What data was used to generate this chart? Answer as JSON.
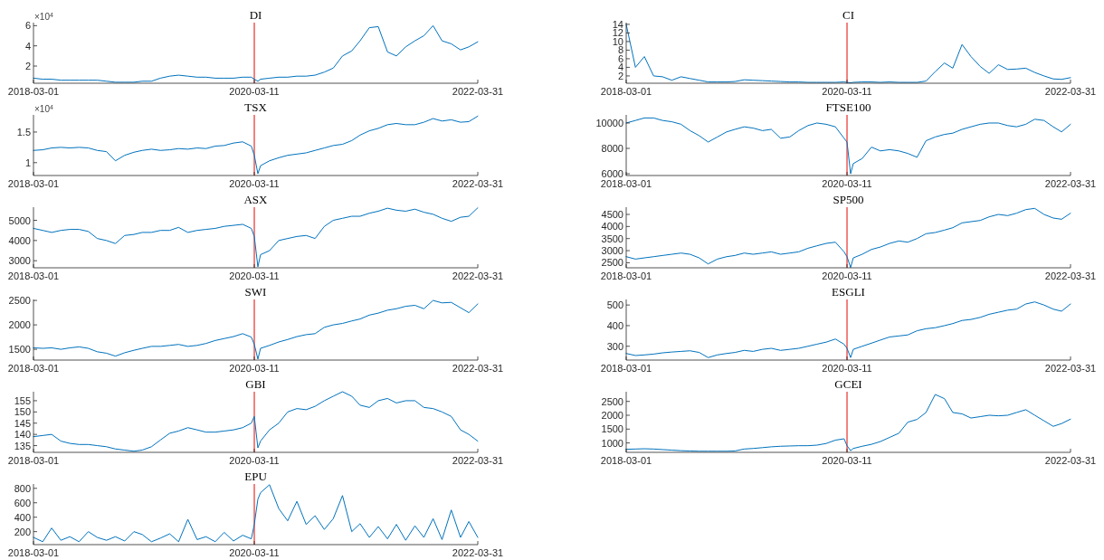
{
  "chart_data": [
    {
      "type": "line",
      "title": "DI",
      "annotations": [
        "×10$^{4}$"
      ],
      "x": [
        "2018-03-01",
        "2018-04-01",
        "2018-05-01",
        "2018-06-01",
        "2018-07-01",
        "2018-08-01",
        "2018-09-01",
        "2018-10-01",
        "2018-11-01",
        "2018-12-01",
        "2019-01-01",
        "2019-02-01",
        "2019-03-01",
        "2019-04-01",
        "2019-05-01",
        "2019-06-01",
        "2019-07-01",
        "2019-08-01",
        "2019-09-01",
        "2019-10-01",
        "2019-11-01",
        "2019-12-01",
        "2020-01-01",
        "2020-02-01",
        "2020-03-01",
        "2020-03-11",
        "2020-03-23",
        "2020-04-01",
        "2020-05-01",
        "2020-06-01",
        "2020-07-01",
        "2020-08-01",
        "2020-09-01",
        "2020-10-01",
        "2020-11-01",
        "2020-12-01",
        "2021-01-01",
        "2021-02-01",
        "2021-03-01",
        "2021-04-01",
        "2021-05-01",
        "2021-06-01",
        "2021-07-01",
        "2021-08-01",
        "2021-09-01",
        "2021-10-01",
        "2021-11-01",
        "2021-12-01",
        "2022-01-01",
        "2022-02-01",
        "2022-03-01",
        "2022-03-31"
      ],
      "series": [
        {
          "color": "#0072bd",
          "values": [
            0.8,
            0.7,
            0.7,
            0.6,
            0.6,
            0.6,
            0.6,
            0.6,
            0.5,
            0.4,
            0.4,
            0.4,
            0.5,
            0.5,
            0.8,
            1.0,
            1.1,
            1.0,
            0.9,
            0.9,
            0.8,
            0.8,
            0.8,
            0.9,
            0.9,
            0.7,
            0.5,
            0.7,
            0.8,
            0.9,
            0.9,
            1.0,
            1.0,
            1.1,
            1.4,
            1.8,
            3.0,
            3.5,
            4.5,
            5.8,
            5.9,
            3.4,
            3.0,
            3.9,
            4.5,
            5.0,
            6.0,
            4.5,
            4.2,
            3.6,
            3.9,
            4.4
          ]
        }
      ],
      "xlim": [
        "2018-03-01",
        "2022-03-31"
      ],
      "xticks": [
        "2018-03-01",
        "2020-03-11",
        "2022-03-31"
      ],
      "ylim": [
        0.3,
        6.3
      ],
      "yticks": [
        2,
        4,
        6
      ],
      "ref_lines": [
        {
          "axis": "x",
          "value": "2020-03-11",
          "color": "#e8302a"
        }
      ]
    },
    {
      "type": "line",
      "title": "CI",
      "x": [
        "2018-03-01",
        "2018-04-01",
        "2018-05-01",
        "2018-06-01",
        "2018-07-01",
        "2018-08-01",
        "2018-09-01",
        "2018-10-01",
        "2018-11-01",
        "2018-12-01",
        "2019-01-01",
        "2019-02-01",
        "2019-03-01",
        "2019-04-01",
        "2019-05-01",
        "2019-06-01",
        "2019-07-01",
        "2019-08-01",
        "2019-09-01",
        "2019-10-01",
        "2019-11-01",
        "2019-12-01",
        "2020-01-01",
        "2020-02-01",
        "2020-03-01",
        "2020-03-11",
        "2020-03-23",
        "2020-04-01",
        "2020-05-01",
        "2020-06-01",
        "2020-07-01",
        "2020-08-01",
        "2020-09-01",
        "2020-10-01",
        "2020-11-01",
        "2020-12-01",
        "2021-01-01",
        "2021-02-01",
        "2021-03-01",
        "2021-04-01",
        "2021-05-01",
        "2021-06-01",
        "2021-07-01",
        "2021-08-01",
        "2021-09-01",
        "2021-10-01",
        "2021-11-01",
        "2021-12-01",
        "2022-01-01",
        "2022-02-01",
        "2022-03-01",
        "2022-03-31"
      ],
      "series": [
        {
          "color": "#0072bd",
          "values": [
            14,
            4,
            6.5,
            2,
            1.8,
            1,
            1.8,
            1.4,
            1.0,
            0.6,
            0.6,
            0.6,
            0.7,
            1.1,
            1.0,
            0.9,
            0.8,
            0.7,
            0.6,
            0.6,
            0.5,
            0.5,
            0.5,
            0.5,
            0.6,
            0.5,
            0.4,
            0.5,
            0.6,
            0.6,
            0.5,
            0.6,
            0.5,
            0.5,
            0.5,
            0.8,
            3.0,
            5.0,
            3.8,
            9.3,
            6.5,
            4.2,
            2.6,
            4.6,
            3.5,
            3.6,
            3.8,
            2.8,
            2.0,
            1.3,
            1.2,
            1.6
          ]
        }
      ],
      "xlim": [
        "2018-03-01",
        "2022-03-31"
      ],
      "xticks": [
        "2018-03-01",
        "2020-03-11",
        "2022-03-31"
      ],
      "ylim": [
        0.3,
        14.4
      ],
      "yticks": [
        2,
        4,
        6,
        8,
        10,
        12,
        14
      ],
      "ref_lines": [
        {
          "axis": "x",
          "value": "2020-03-11",
          "color": "#e8302a"
        }
      ]
    },
    {
      "type": "line",
      "title": "TSX",
      "annotations": [
        "×10$^{4}$"
      ],
      "x": [
        "2018-03-01",
        "2018-04-01",
        "2018-05-01",
        "2018-06-01",
        "2018-07-01",
        "2018-08-01",
        "2018-09-01",
        "2018-10-01",
        "2018-11-01",
        "2018-12-01",
        "2019-01-01",
        "2019-02-01",
        "2019-03-01",
        "2019-04-01",
        "2019-05-01",
        "2019-06-01",
        "2019-07-01",
        "2019-08-01",
        "2019-09-01",
        "2019-10-01",
        "2019-11-01",
        "2019-12-01",
        "2020-01-01",
        "2020-02-01",
        "2020-03-01",
        "2020-03-11",
        "2020-03-23",
        "2020-04-01",
        "2020-05-01",
        "2020-06-01",
        "2020-07-01",
        "2020-08-01",
        "2020-09-01",
        "2020-10-01",
        "2020-11-01",
        "2020-12-01",
        "2021-01-01",
        "2021-02-01",
        "2021-03-01",
        "2021-04-01",
        "2021-05-01",
        "2021-06-01",
        "2021-07-01",
        "2021-08-01",
        "2021-09-01",
        "2021-10-01",
        "2021-11-01",
        "2021-12-01",
        "2022-01-01",
        "2022-02-01",
        "2022-03-01",
        "2022-03-31"
      ],
      "series": [
        {
          "color": "#0072bd",
          "values": [
            1.2,
            1.21,
            1.24,
            1.25,
            1.24,
            1.25,
            1.24,
            1.2,
            1.18,
            1.03,
            1.12,
            1.17,
            1.2,
            1.22,
            1.2,
            1.21,
            1.23,
            1.22,
            1.24,
            1.23,
            1.27,
            1.28,
            1.32,
            1.34,
            1.27,
            1.12,
            0.82,
            0.95,
            1.03,
            1.08,
            1.12,
            1.14,
            1.16,
            1.2,
            1.24,
            1.28,
            1.3,
            1.36,
            1.45,
            1.52,
            1.56,
            1.62,
            1.64,
            1.62,
            1.62,
            1.66,
            1.72,
            1.68,
            1.7,
            1.66,
            1.67,
            1.76
          ]
        }
      ],
      "xlim": [
        "2018-03-01",
        "2022-03-31"
      ],
      "xticks": [
        "2018-03-01",
        "2020-03-11",
        "2022-03-31"
      ],
      "ylim": [
        0.79,
        1.78
      ],
      "yticks": [
        1,
        1.5
      ],
      "ref_lines": [
        {
          "axis": "x",
          "value": "2020-03-11",
          "color": "#e8302a"
        }
      ]
    },
    {
      "type": "line",
      "title": "FTSE100",
      "x": [
        "2018-03-01",
        "2018-04-01",
        "2018-05-01",
        "2018-06-01",
        "2018-07-01",
        "2018-08-01",
        "2018-09-01",
        "2018-10-01",
        "2018-11-01",
        "2018-12-01",
        "2019-01-01",
        "2019-02-01",
        "2019-03-01",
        "2019-04-01",
        "2019-05-01",
        "2019-06-01",
        "2019-07-01",
        "2019-08-01",
        "2019-09-01",
        "2019-10-01",
        "2019-11-01",
        "2019-12-01",
        "2020-01-01",
        "2020-02-01",
        "2020-03-01",
        "2020-03-11",
        "2020-03-23",
        "2020-04-01",
        "2020-05-01",
        "2020-06-01",
        "2020-07-01",
        "2020-08-01",
        "2020-09-01",
        "2020-10-01",
        "2020-11-01",
        "2020-12-01",
        "2021-01-01",
        "2021-02-01",
        "2021-03-01",
        "2021-04-01",
        "2021-05-01",
        "2021-06-01",
        "2021-07-01",
        "2021-08-01",
        "2021-09-01",
        "2021-10-01",
        "2021-11-01",
        "2021-12-01",
        "2022-01-01",
        "2022-02-01",
        "2022-03-01",
        "2022-03-31"
      ],
      "series": [
        {
          "color": "#0072bd",
          "values": [
            10000,
            10200,
            10400,
            10400,
            10200,
            10100,
            9900,
            9400,
            9000,
            8500,
            8900,
            9300,
            9500,
            9700,
            9600,
            9400,
            9500,
            8800,
            8900,
            9400,
            9800,
            10000,
            9900,
            9700,
            8800,
            8500,
            6000,
            6800,
            7200,
            8100,
            7800,
            7900,
            7800,
            7600,
            7300,
            8600,
            8900,
            9100,
            9200,
            9500,
            9700,
            9900,
            10000,
            10000,
            9800,
            9700,
            9900,
            10300,
            10200,
            9700,
            9300,
            9900
          ]
        }
      ],
      "xlim": [
        "2018-03-01",
        "2022-03-31"
      ],
      "xticks": [
        "2018-03-01",
        "2020-03-11",
        "2022-03-31"
      ],
      "ylim": [
        5860,
        10640
      ],
      "yticks": [
        6000,
        8000,
        10000
      ],
      "ref_lines": [
        {
          "axis": "x",
          "value": "2020-03-11",
          "color": "#e8302a"
        }
      ]
    },
    {
      "type": "line",
      "title": "ASX",
      "x": [
        "2018-03-01",
        "2018-04-01",
        "2018-05-01",
        "2018-06-01",
        "2018-07-01",
        "2018-08-01",
        "2018-09-01",
        "2018-10-01",
        "2018-11-01",
        "2018-12-01",
        "2019-01-01",
        "2019-02-01",
        "2019-03-01",
        "2019-04-01",
        "2019-05-01",
        "2019-06-01",
        "2019-07-01",
        "2019-08-01",
        "2019-09-01",
        "2019-10-01",
        "2019-11-01",
        "2019-12-01",
        "2020-01-01",
        "2020-02-01",
        "2020-03-01",
        "2020-03-11",
        "2020-03-23",
        "2020-04-01",
        "2020-05-01",
        "2020-06-01",
        "2020-07-01",
        "2020-08-01",
        "2020-09-01",
        "2020-10-01",
        "2020-11-01",
        "2020-12-01",
        "2021-01-01",
        "2021-02-01",
        "2021-03-01",
        "2021-04-01",
        "2021-05-01",
        "2021-06-01",
        "2021-07-01",
        "2021-08-01",
        "2021-09-01",
        "2021-10-01",
        "2021-11-01",
        "2021-12-01",
        "2022-01-01",
        "2022-02-01",
        "2022-03-01",
        "2022-03-31"
      ],
      "series": [
        {
          "color": "#0072bd",
          "values": [
            4600,
            4500,
            4400,
            4500,
            4550,
            4550,
            4450,
            4100,
            4000,
            3850,
            4250,
            4300,
            4400,
            4400,
            4500,
            4500,
            4650,
            4400,
            4500,
            4550,
            4600,
            4700,
            4750,
            4800,
            4600,
            4200,
            2700,
            3300,
            3500,
            4000,
            4100,
            4200,
            4250,
            4100,
            4700,
            5000,
            5100,
            5200,
            5200,
            5350,
            5450,
            5600,
            5500,
            5450,
            5550,
            5400,
            5300,
            5100,
            4950,
            5150,
            5200,
            5620
          ]
        }
      ],
      "xlim": [
        "2018-03-01",
        "2022-03-31"
      ],
      "xticks": [
        "2018-03-01",
        "2020-03-11",
        "2022-03-31"
      ],
      "ylim": [
        2650,
        5650
      ],
      "yticks": [
        3000,
        4000,
        5000
      ],
      "ref_lines": [
        {
          "axis": "x",
          "value": "2020-03-11",
          "color": "#e8302a"
        }
      ]
    },
    {
      "type": "line",
      "title": "SP500",
      "x": [
        "2018-03-01",
        "2018-04-01",
        "2018-05-01",
        "2018-06-01",
        "2018-07-01",
        "2018-08-01",
        "2018-09-01",
        "2018-10-01",
        "2018-11-01",
        "2018-12-01",
        "2019-01-01",
        "2019-02-01",
        "2019-03-01",
        "2019-04-01",
        "2019-05-01",
        "2019-06-01",
        "2019-07-01",
        "2019-08-01",
        "2019-09-01",
        "2019-10-01",
        "2019-11-01",
        "2019-12-01",
        "2020-01-01",
        "2020-02-01",
        "2020-03-01",
        "2020-03-11",
        "2020-03-23",
        "2020-04-01",
        "2020-05-01",
        "2020-06-01",
        "2020-07-01",
        "2020-08-01",
        "2020-09-01",
        "2020-10-01",
        "2020-11-01",
        "2020-12-01",
        "2021-01-01",
        "2021-02-01",
        "2021-03-01",
        "2021-04-01",
        "2021-05-01",
        "2021-06-01",
        "2021-07-01",
        "2021-08-01",
        "2021-09-01",
        "2021-10-01",
        "2021-11-01",
        "2021-12-01",
        "2022-01-01",
        "2022-02-01",
        "2022-03-01",
        "2022-03-31"
      ],
      "series": [
        {
          "color": "#0072bd",
          "values": [
            2750,
            2650,
            2700,
            2750,
            2800,
            2850,
            2900,
            2850,
            2700,
            2450,
            2650,
            2750,
            2800,
            2900,
            2850,
            2900,
            2950,
            2850,
            2900,
            2950,
            3100,
            3200,
            3300,
            3350,
            2950,
            2750,
            2300,
            2700,
            2850,
            3050,
            3150,
            3300,
            3400,
            3350,
            3500,
            3700,
            3750,
            3850,
            3950,
            4150,
            4200,
            4250,
            4400,
            4500,
            4450,
            4550,
            4700,
            4750,
            4500,
            4350,
            4300,
            4550
          ]
        }
      ],
      "xlim": [
        "2018-03-01",
        "2022-03-31"
      ],
      "xticks": [
        "2018-03-01",
        "2020-03-11",
        "2022-03-31"
      ],
      "ylim": [
        2290,
        4800
      ],
      "yticks": [
        2500,
        3000,
        3500,
        4000,
        4500
      ],
      "ref_lines": [
        {
          "axis": "x",
          "value": "2020-03-11",
          "color": "#e8302a"
        }
      ]
    },
    {
      "type": "line",
      "title": "SWI",
      "x": [
        "2018-03-01",
        "2018-04-01",
        "2018-05-01",
        "2018-06-01",
        "2018-07-01",
        "2018-08-01",
        "2018-09-01",
        "2018-10-01",
        "2018-11-01",
        "2018-12-01",
        "2019-01-01",
        "2019-02-01",
        "2019-03-01",
        "2019-04-01",
        "2019-05-01",
        "2019-06-01",
        "2019-07-01",
        "2019-08-01",
        "2019-09-01",
        "2019-10-01",
        "2019-11-01",
        "2019-12-01",
        "2020-01-01",
        "2020-02-01",
        "2020-03-01",
        "2020-03-11",
        "2020-03-23",
        "2020-04-01",
        "2020-05-01",
        "2020-06-01",
        "2020-07-01",
        "2020-08-01",
        "2020-09-01",
        "2020-10-01",
        "2020-11-01",
        "2020-12-01",
        "2021-01-01",
        "2021-02-01",
        "2021-03-01",
        "2021-04-01",
        "2021-05-01",
        "2021-06-01",
        "2021-07-01",
        "2021-08-01",
        "2021-09-01",
        "2021-10-01",
        "2021-11-01",
        "2021-12-01",
        "2022-01-01",
        "2022-02-01",
        "2022-03-01",
        "2022-03-31"
      ],
      "series": [
        {
          "color": "#0072bd",
          "values": [
            1530,
            1520,
            1530,
            1500,
            1530,
            1550,
            1520,
            1450,
            1420,
            1360,
            1430,
            1480,
            1520,
            1560,
            1560,
            1580,
            1600,
            1560,
            1580,
            1620,
            1680,
            1720,
            1760,
            1820,
            1750,
            1600,
            1300,
            1520,
            1580,
            1650,
            1700,
            1760,
            1800,
            1820,
            1950,
            2000,
            2030,
            2080,
            2120,
            2200,
            2240,
            2300,
            2330,
            2380,
            2400,
            2330,
            2500,
            2450,
            2460,
            2350,
            2250,
            2430
          ]
        }
      ],
      "xlim": [
        "2018-03-01",
        "2022-03-31"
      ],
      "xticks": [
        "2018-03-01",
        "2020-03-11",
        "2022-03-31"
      ],
      "ylim": [
        1280,
        2520
      ],
      "yticks": [
        1500,
        2000,
        2500
      ],
      "ref_lines": [
        {
          "axis": "x",
          "value": "2020-03-11",
          "color": "#e8302a"
        }
      ]
    },
    {
      "type": "line",
      "title": "ESGLI",
      "x": [
        "2018-03-01",
        "2018-04-01",
        "2018-05-01",
        "2018-06-01",
        "2018-07-01",
        "2018-08-01",
        "2018-09-01",
        "2018-10-01",
        "2018-11-01",
        "2018-12-01",
        "2019-01-01",
        "2019-02-01",
        "2019-03-01",
        "2019-04-01",
        "2019-05-01",
        "2019-06-01",
        "2019-07-01",
        "2019-08-01",
        "2019-09-01",
        "2019-10-01",
        "2019-11-01",
        "2019-12-01",
        "2020-01-01",
        "2020-02-01",
        "2020-03-01",
        "2020-03-11",
        "2020-03-23",
        "2020-04-01",
        "2020-05-01",
        "2020-06-01",
        "2020-07-01",
        "2020-08-01",
        "2020-09-01",
        "2020-10-01",
        "2020-11-01",
        "2020-12-01",
        "2021-01-01",
        "2021-02-01",
        "2021-03-01",
        "2021-04-01",
        "2021-05-01",
        "2021-06-01",
        "2021-07-01",
        "2021-08-01",
        "2021-09-01",
        "2021-10-01",
        "2021-11-01",
        "2021-12-01",
        "2022-01-01",
        "2022-02-01",
        "2022-03-01",
        "2022-03-31"
      ],
      "series": [
        {
          "color": "#0072bd",
          "values": [
            265,
            255,
            258,
            262,
            268,
            272,
            275,
            278,
            270,
            245,
            258,
            265,
            270,
            280,
            275,
            285,
            290,
            280,
            285,
            290,
            300,
            310,
            320,
            335,
            310,
            290,
            245,
            285,
            300,
            315,
            330,
            345,
            350,
            355,
            375,
            385,
            390,
            400,
            410,
            425,
            430,
            440,
            455,
            465,
            475,
            480,
            505,
            515,
            500,
            480,
            470,
            505
          ]
        }
      ],
      "xlim": [
        "2018-03-01",
        "2022-03-31"
      ],
      "xticks": [
        "2018-03-01",
        "2020-03-11",
        "2022-03-31"
      ],
      "ylim": [
        233,
        527
      ],
      "yticks": [
        300,
        400,
        500
      ],
      "ref_lines": [
        {
          "axis": "x",
          "value": "2020-03-11",
          "color": "#e8302a"
        }
      ]
    },
    {
      "type": "line",
      "title": "GBI",
      "x": [
        "2018-03-01",
        "2018-04-01",
        "2018-05-01",
        "2018-06-01",
        "2018-07-01",
        "2018-08-01",
        "2018-09-01",
        "2018-10-01",
        "2018-11-01",
        "2018-12-01",
        "2019-01-01",
        "2019-02-01",
        "2019-03-01",
        "2019-04-01",
        "2019-05-01",
        "2019-06-01",
        "2019-07-01",
        "2019-08-01",
        "2019-09-01",
        "2019-10-01",
        "2019-11-01",
        "2019-12-01",
        "2020-01-01",
        "2020-02-01",
        "2020-03-01",
        "2020-03-11",
        "2020-03-23",
        "2020-04-01",
        "2020-05-01",
        "2020-06-01",
        "2020-07-01",
        "2020-08-01",
        "2020-09-01",
        "2020-10-01",
        "2020-11-01",
        "2020-12-01",
        "2021-01-01",
        "2021-02-01",
        "2021-03-01",
        "2021-04-01",
        "2021-05-01",
        "2021-06-01",
        "2021-07-01",
        "2021-08-01",
        "2021-09-01",
        "2021-10-01",
        "2021-11-01",
        "2021-12-01",
        "2022-01-01",
        "2022-02-01",
        "2022-03-01",
        "2022-03-31"
      ],
      "series": [
        {
          "color": "#0072bd",
          "values": [
            139,
            139.5,
            140,
            137,
            136,
            135.5,
            135.5,
            135,
            134.5,
            133.5,
            133,
            132.5,
            133,
            134.5,
            137.5,
            140.5,
            141.5,
            143,
            142,
            141,
            141,
            141.5,
            142,
            143,
            145,
            148,
            134,
            137,
            142,
            145,
            150,
            151.5,
            151,
            152.5,
            155,
            157,
            159,
            157,
            153,
            152,
            155,
            156,
            154,
            155,
            155,
            152,
            151.5,
            150,
            148,
            142,
            140,
            137
          ]
        }
      ],
      "xlim": [
        "2018-03-01",
        "2022-03-31"
      ],
      "xticks": [
        "2018-03-01",
        "2020-03-11",
        "2022-03-31"
      ],
      "ylim": [
        132,
        159
      ],
      "yticks": [
        135,
        140,
        145,
        150,
        155
      ],
      "ref_lines": [
        {
          "axis": "x",
          "value": "2020-03-11",
          "color": "#e8302a"
        }
      ]
    },
    {
      "type": "line",
      "title": "GCEI",
      "x": [
        "2018-03-01",
        "2018-04-01",
        "2018-05-01",
        "2018-06-01",
        "2018-07-01",
        "2018-08-01",
        "2018-09-01",
        "2018-10-01",
        "2018-11-01",
        "2018-12-01",
        "2019-01-01",
        "2019-02-01",
        "2019-03-01",
        "2019-04-01",
        "2019-05-01",
        "2019-06-01",
        "2019-07-01",
        "2019-08-01",
        "2019-09-01",
        "2019-10-01",
        "2019-11-01",
        "2019-12-01",
        "2020-01-01",
        "2020-02-01",
        "2020-03-01",
        "2020-03-11",
        "2020-03-23",
        "2020-04-01",
        "2020-05-01",
        "2020-06-01",
        "2020-07-01",
        "2020-08-01",
        "2020-09-01",
        "2020-10-01",
        "2020-11-01",
        "2020-12-01",
        "2021-01-01",
        "2021-02-01",
        "2021-03-01",
        "2021-04-01",
        "2021-05-01",
        "2021-06-01",
        "2021-07-01",
        "2021-08-01",
        "2021-09-01",
        "2021-10-01",
        "2021-11-01",
        "2021-12-01",
        "2022-01-01",
        "2022-02-01",
        "2022-03-01",
        "2022-03-31"
      ],
      "series": [
        {
          "color": "#0072bd",
          "values": [
            770,
            780,
            790,
            780,
            760,
            740,
            720,
            710,
            700,
            700,
            700,
            700,
            710,
            780,
            800,
            830,
            860,
            880,
            890,
            900,
            900,
            920,
            980,
            1100,
            1150,
            900,
            720,
            800,
            880,
            950,
            1050,
            1200,
            1350,
            1750,
            1850,
            2100,
            2750,
            2600,
            2100,
            2050,
            1900,
            1950,
            2000,
            1980,
            2000,
            2100,
            2200,
            2000,
            1800,
            1600,
            1700,
            1860
          ]
        }
      ],
      "xlim": [
        "2018-03-01",
        "2022-03-31"
      ],
      "xticks": [
        "2018-03-01",
        "2020-03-11",
        "2022-03-31"
      ],
      "ylim": [
        660,
        2850
      ],
      "yticks": [
        1000,
        1500,
        2000,
        2500
      ],
      "ref_lines": [
        {
          "axis": "x",
          "value": "2020-03-11",
          "color": "#e8302a"
        }
      ]
    },
    {
      "type": "line",
      "title": "EPU",
      "x": [
        "2018-03-01",
        "2018-04-01",
        "2018-05-01",
        "2018-06-01",
        "2018-07-01",
        "2018-08-01",
        "2018-09-01",
        "2018-10-01",
        "2018-11-01",
        "2018-12-01",
        "2019-01-01",
        "2019-02-01",
        "2019-03-01",
        "2019-04-01",
        "2019-05-01",
        "2019-06-01",
        "2019-07-01",
        "2019-08-01",
        "2019-09-01",
        "2019-10-01",
        "2019-11-01",
        "2019-12-01",
        "2020-01-01",
        "2020-02-01",
        "2020-03-01",
        "2020-03-11",
        "2020-03-23",
        "2020-04-01",
        "2020-05-01",
        "2020-06-01",
        "2020-07-01",
        "2020-08-01",
        "2020-09-01",
        "2020-10-01",
        "2020-11-01",
        "2020-12-01",
        "2021-01-01",
        "2021-02-01",
        "2021-03-01",
        "2021-04-01",
        "2021-05-01",
        "2021-06-01",
        "2021-07-01",
        "2021-08-01",
        "2021-09-01",
        "2021-10-01",
        "2021-11-01",
        "2021-12-01",
        "2022-01-01",
        "2022-02-01",
        "2022-03-01",
        "2022-03-31"
      ],
      "series": [
        {
          "color": "#0072bd",
          "values": [
            120,
            60,
            250,
            80,
            130,
            60,
            200,
            120,
            80,
            130,
            70,
            200,
            160,
            60,
            110,
            170,
            60,
            370,
            90,
            130,
            60,
            190,
            70,
            150,
            100,
            300,
            650,
            740,
            850,
            520,
            350,
            620,
            300,
            420,
            230,
            380,
            700,
            200,
            310,
            120,
            270,
            100,
            300,
            80,
            280,
            120,
            380,
            90,
            500,
            120,
            340,
            120
          ]
        }
      ],
      "xlim": [
        "2018-03-01",
        "2022-03-31"
      ],
      "xticks": [
        "2018-03-01",
        "2020-03-11",
        "2022-03-31"
      ],
      "ylim": [
        20,
        860
      ],
      "yticks": [
        200,
        400,
        600,
        800
      ],
      "ref_lines": [
        {
          "axis": "x",
          "value": "2020-03-11",
          "color": "#e8302a"
        }
      ]
    }
  ]
}
